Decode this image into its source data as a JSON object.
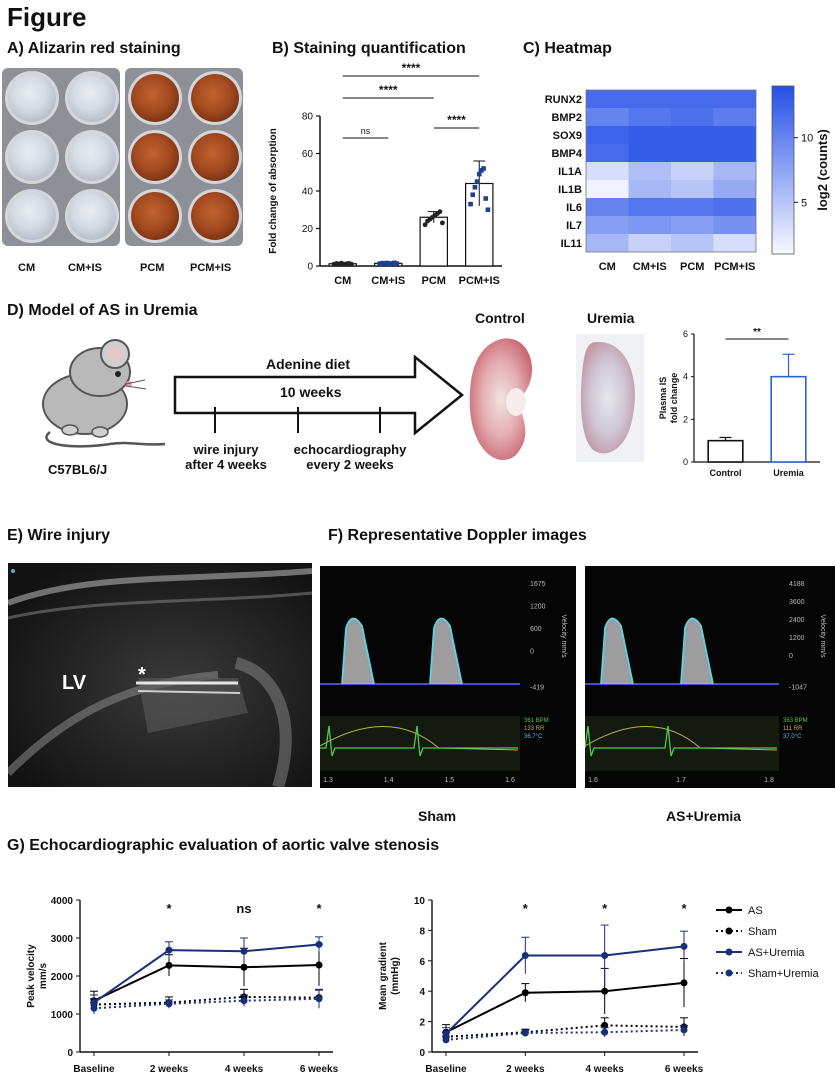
{
  "figure_title": "Figure",
  "panels": {
    "a": {
      "title": "A) Alizarin red staining",
      "labels": [
        "CM",
        "CM+IS",
        "PCM",
        "PCM+IS"
      ]
    },
    "b": {
      "title": "B) Staining quantification"
    },
    "c": {
      "title": "C) Heatmap"
    },
    "d": {
      "title": "D) Model of AS in Uremia",
      "mouse_label": "C57BL6/J",
      "diet_label": "Adenine diet",
      "duration_label": "10 weeks",
      "wire_label_1": "wire injury",
      "wire_label_2": "after 4 weeks",
      "echo_label_1": "echocardiography",
      "echo_label_2": "every 2 weeks",
      "control_label": "Control",
      "uremia_label": "Uremia"
    },
    "e": {
      "title": "E) Wire injury",
      "lv_label": "LV",
      "star_label": "*"
    },
    "f": {
      "title": "F) Representative Doppler images",
      "sham_label": "Sham",
      "uremia_label": "AS+Uremia",
      "sham_scale": [
        "1675",
        "1200",
        "600",
        "0",
        "-419"
      ],
      "uremia_scale": [
        "4188",
        "3600",
        "2400",
        "1200",
        "0",
        "-1047"
      ],
      "sham_time_ticks": [
        "1.3",
        "1.4",
        "1.5",
        "1.6"
      ],
      "uremia_time_ticks": [
        "1.6",
        "1.7",
        "1.8"
      ],
      "sham_vitals": [
        "361 BPM",
        "133 RR",
        "36.7°C"
      ],
      "uremia_vitals": [
        "363 BPM",
        "111 RR",
        "37.0°C"
      ],
      "velocity_axis": "Velocity mm/s"
    },
    "g": {
      "title": "G) Echocardiographic evaluation of aortic valve stenosis"
    }
  },
  "chart_data": [
    {
      "id": "b",
      "type": "bar",
      "categories": [
        "CM",
        "CM+IS",
        "PCM",
        "PCM+IS"
      ],
      "values": [
        1.2,
        1.4,
        26,
        44
      ],
      "errors": [
        0.5,
        0.5,
        3,
        12
      ],
      "ylabel": "Fold change of absorption",
      "ylim": [
        0,
        80
      ],
      "yticks": [
        0,
        20,
        40,
        60,
        80
      ],
      "point_colors": [
        "#222222",
        "#1f3f8f",
        "#222222",
        "#1f3f8f"
      ],
      "points": [
        [
          1.0,
          1.3,
          1.1,
          1.5,
          0.9,
          1.2,
          1.4,
          1.0
        ],
        [
          1.2,
          1.5,
          1.3,
          1.6,
          1.1,
          1.4,
          1.7,
          1.3
        ],
        [
          22,
          24,
          25,
          26,
          27,
          28,
          29,
          23
        ],
        [
          33,
          38,
          42,
          45,
          49,
          51,
          52,
          36,
          30
        ]
      ],
      "significance": [
        {
          "from": 0,
          "to": 1,
          "label": "ns"
        },
        {
          "from": 2,
          "to": 3,
          "label": "****"
        },
        {
          "from": 0,
          "to": 2,
          "label": "****"
        },
        {
          "from": 0,
          "to": 3,
          "label": "****"
        }
      ]
    },
    {
      "id": "c",
      "type": "heatmap",
      "rows": [
        "RUNX2",
        "BMP2",
        "SOX9",
        "BMP4",
        "IL1A",
        "IL1B",
        "IL6",
        "IL7",
        "IL11"
      ],
      "columns": [
        "CM",
        "CM+IS",
        "PCM",
        "PCM+IS"
      ],
      "values": [
        [
          12,
          12,
          12,
          12
        ],
        [
          10,
          11,
          11.5,
          10.5
        ],
        [
          12.5,
          13,
          13,
          13
        ],
        [
          12,
          13,
          13,
          13
        ],
        [
          3,
          5.5,
          4,
          6
        ],
        [
          1.5,
          6,
          5,
          7
        ],
        [
          10,
          11,
          11,
          11.5
        ],
        [
          8,
          8.5,
          8,
          9
        ],
        [
          6,
          4,
          5,
          3
        ]
      ],
      "colorbar_label": "log2 (counts)",
      "colorbar_ticks": [
        5,
        10
      ],
      "range": [
        1,
        14
      ]
    },
    {
      "id": "d",
      "type": "bar",
      "categories": [
        "Control",
        "Uremia"
      ],
      "values": [
        1.0,
        4.0
      ],
      "errors": [
        0.15,
        1.05
      ],
      "colors": [
        "#111111",
        "#2b62d9"
      ],
      "ylabel": "Plasma IS fold change",
      "ylim": [
        0,
        6
      ],
      "yticks": [
        0,
        2,
        4,
        6
      ],
      "significance": [
        {
          "from": 0,
          "to": 1,
          "label": "**"
        }
      ]
    },
    {
      "id": "g1",
      "type": "line",
      "x": [
        "Baseline",
        "2 weeks",
        "4 weeks",
        "6 weeks"
      ],
      "ylabel": "Peak velocity mm/s",
      "ylim": [
        0,
        4000
      ],
      "yticks": [
        0,
        1000,
        2000,
        3000,
        4000
      ],
      "significance_labels": [
        "",
        "*",
        "ns",
        "*"
      ],
      "series": [
        {
          "name": "AS",
          "values": [
            1350,
            2280,
            2230,
            2290
          ],
          "errors": [
            250,
            280,
            500,
            550
          ],
          "color": "#000000",
          "dashed": false
        },
        {
          "name": "Sham",
          "values": [
            1250,
            1300,
            1450,
            1430
          ],
          "errors": [
            150,
            150,
            200,
            200
          ],
          "color": "#000000",
          "dashed": true
        },
        {
          "name": "AS+Uremia",
          "values": [
            1300,
            2680,
            2650,
            2830
          ],
          "errors": [
            200,
            220,
            350,
            200
          ],
          "color": "#1a2f7a",
          "dashed": false
        },
        {
          "name": "Sham+Uremia",
          "values": [
            1150,
            1270,
            1350,
            1400
          ],
          "errors": [
            150,
            100,
            150,
            250
          ],
          "color": "#1a2f7a",
          "dashed": true
        }
      ]
    },
    {
      "id": "g2",
      "type": "line",
      "x": [
        "Baseline",
        "2 weeks",
        "4 weeks",
        "6 weeks"
      ],
      "ylabel": "Mean gradient (mmHg)",
      "ylim": [
        0,
        10
      ],
      "yticks": [
        0,
        2,
        4,
        6,
        8,
        10
      ],
      "significance_labels": [
        "",
        "*",
        "*",
        "*"
      ],
      "series": [
        {
          "name": "AS",
          "values": [
            1.3,
            3.9,
            4.0,
            4.55
          ],
          "errors": [
            0.5,
            0.6,
            1.5,
            1.6
          ],
          "color": "#000000",
          "dashed": false
        },
        {
          "name": "Sham",
          "values": [
            1.0,
            1.3,
            1.75,
            1.65
          ],
          "errors": [
            0.3,
            0.2,
            0.5,
            0.6
          ],
          "color": "#000000",
          "dashed": true
        },
        {
          "name": "AS+Uremia",
          "values": [
            1.2,
            6.35,
            6.35,
            6.95
          ],
          "errors": [
            0.4,
            1.2,
            2.0,
            1.0
          ],
          "color": "#1a2f7a",
          "dashed": false
        },
        {
          "name": "Sham+Uremia",
          "values": [
            0.8,
            1.25,
            1.3,
            1.45
          ],
          "errors": [
            0.2,
            0.2,
            0.3,
            0.3
          ],
          "color": "#1a2f7a",
          "dashed": true
        }
      ]
    }
  ]
}
